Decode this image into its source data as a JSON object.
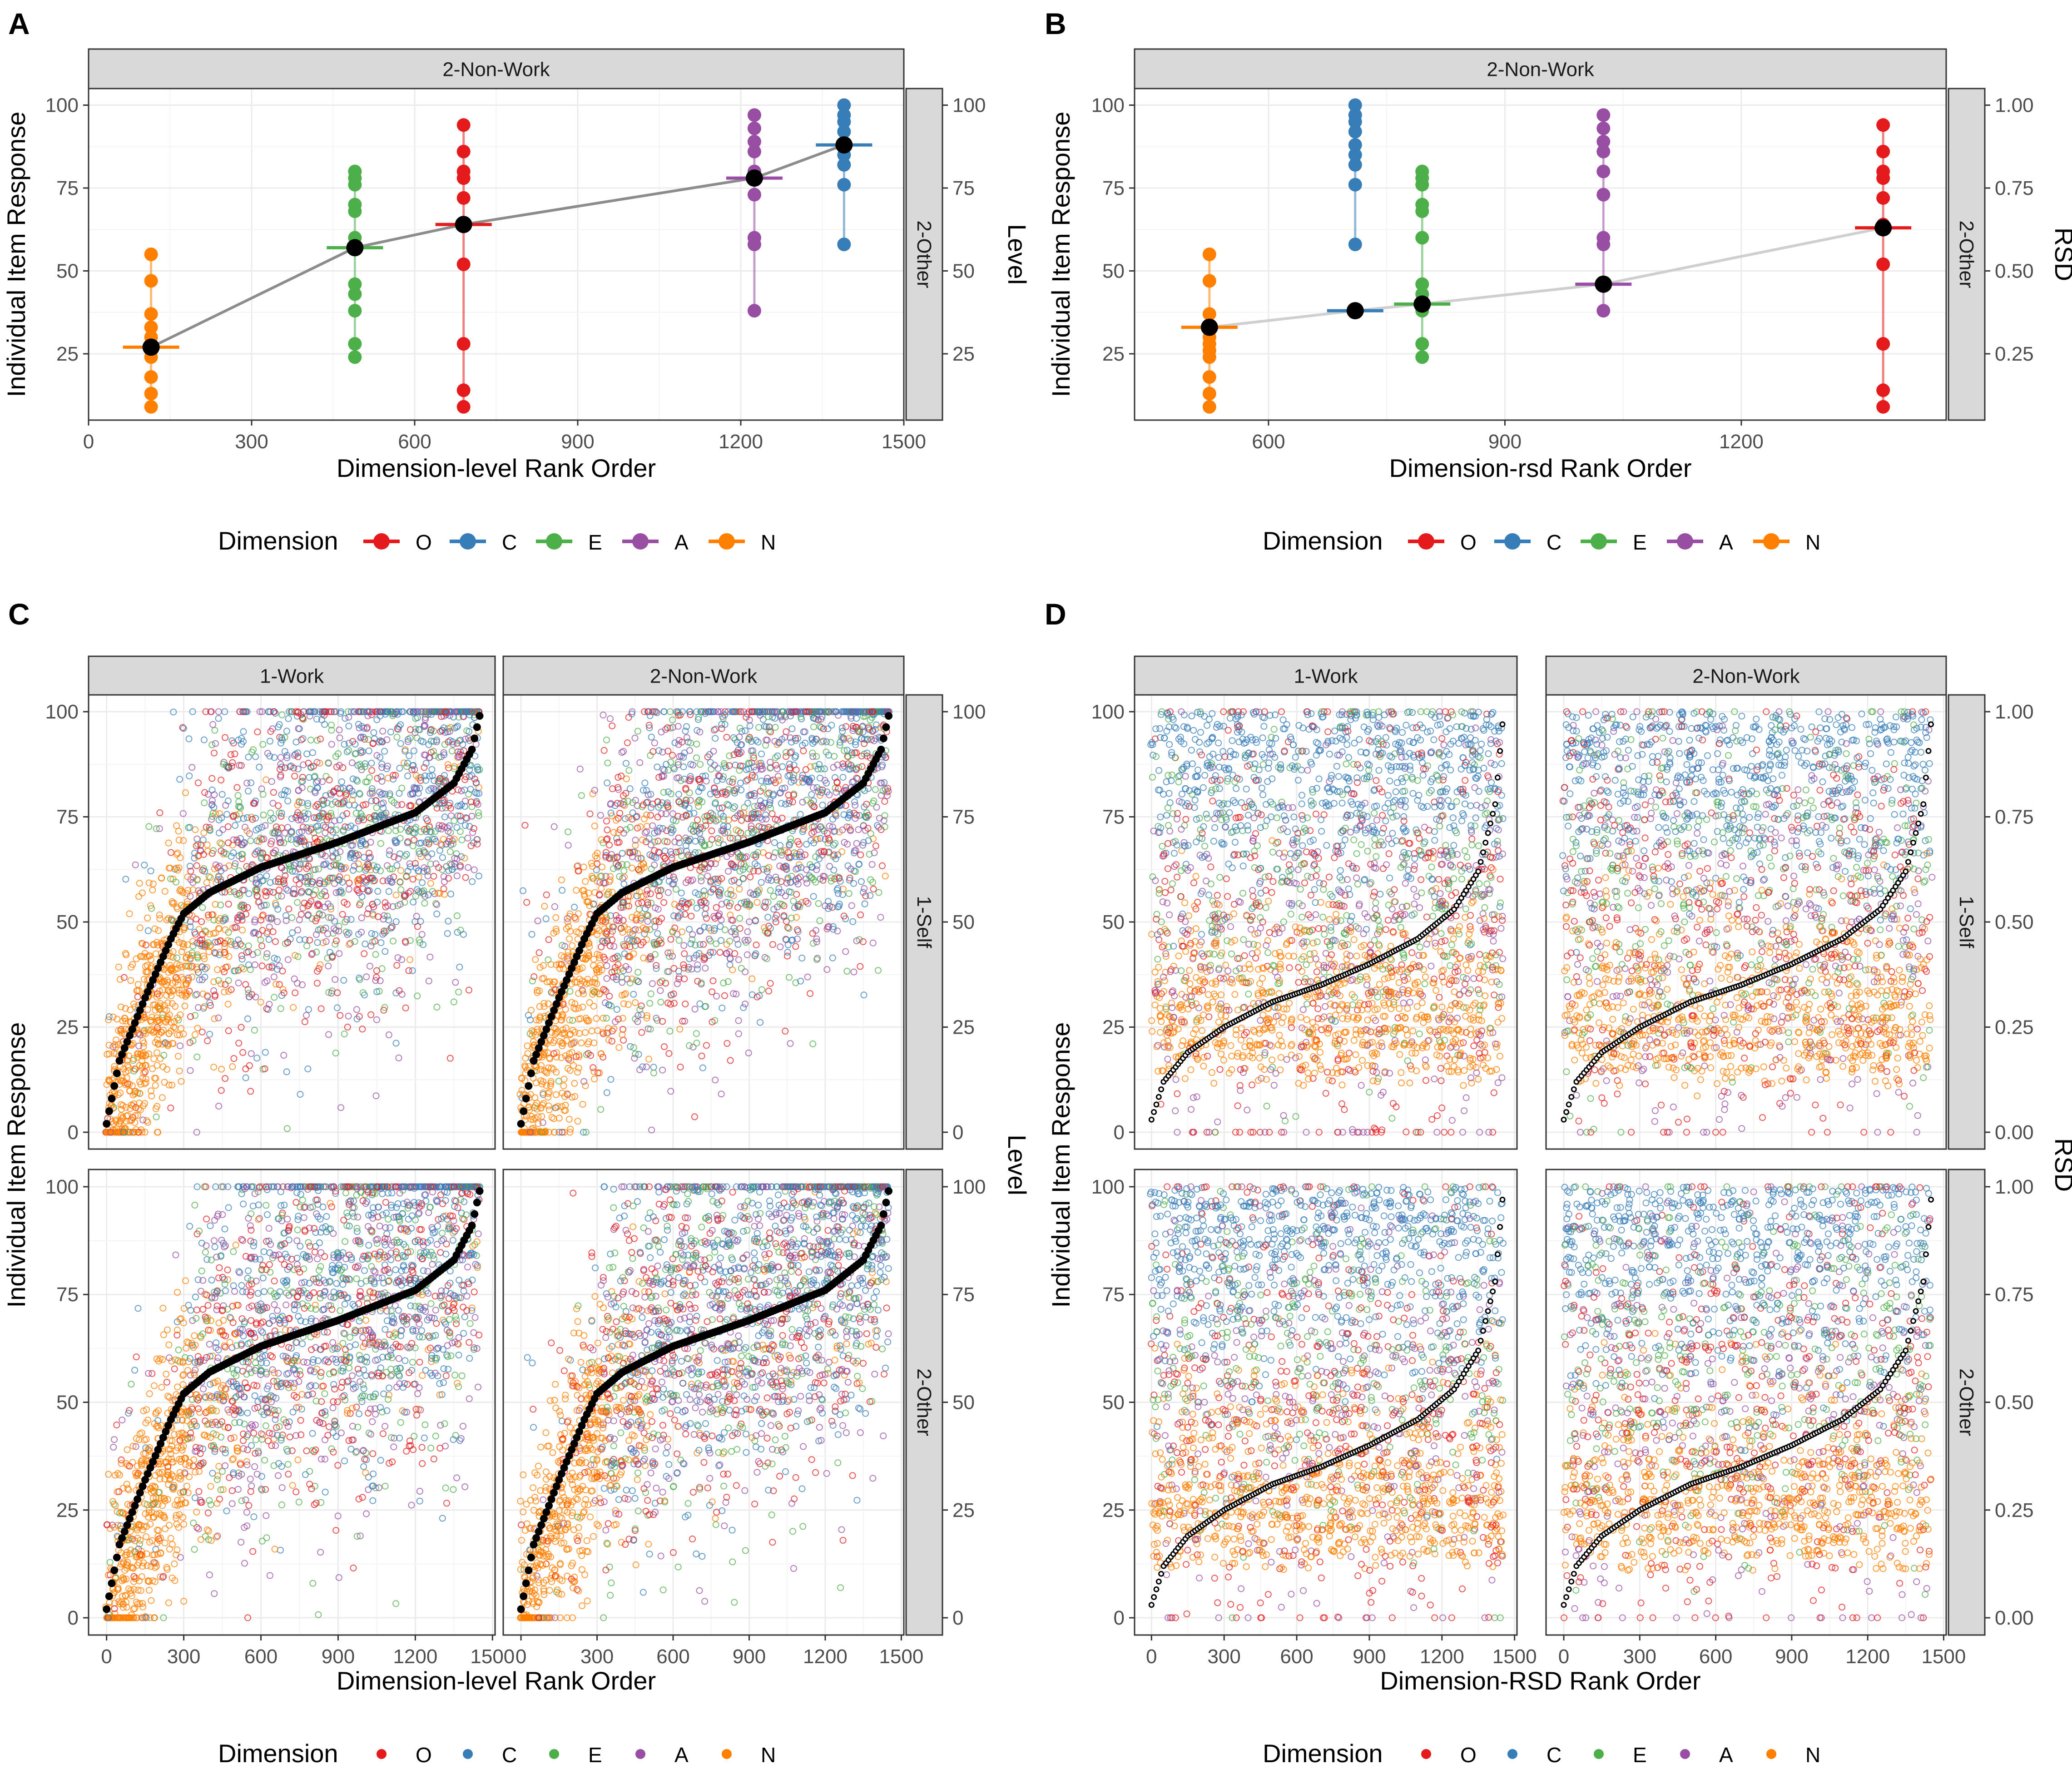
{
  "colors": {
    "O": "#E41A1C",
    "C": "#377EB8",
    "E": "#4DAF4A",
    "A": "#984EA3",
    "N": "#FF7F00",
    "strip": "#D9D9D9",
    "grid": "#EBEBEB",
    "panel_border": "#333333",
    "text": "#000000",
    "tick": "#4D4D4D"
  },
  "legend": {
    "title": "Dimension",
    "labels": [
      "O",
      "C",
      "E",
      "A",
      "N"
    ]
  },
  "chart_data": [
    {
      "id": "A",
      "letter": "A",
      "type": "scatter",
      "strips_top": [
        "2-Non-Work"
      ],
      "strips_right": [
        "2-Other"
      ],
      "xlabel": "Dimension-level Rank Order",
      "ylabel": "Individual Item Response",
      "y2label": "Level",
      "xlim": [
        0,
        1500
      ],
      "ylim": [
        5,
        105
      ],
      "xticks": [
        0,
        300,
        600,
        900,
        1200,
        1500
      ],
      "yticks": [
        25,
        50,
        75,
        100
      ],
      "ytick_labels": [
        "25",
        "50",
        "75",
        "100"
      ],
      "y2ticks": [
        25,
        50,
        75,
        100
      ],
      "y2tick_labels": [
        "25",
        "50",
        "75",
        "100"
      ],
      "groups": [
        {
          "dim": "N",
          "x": 115,
          "mean": 27,
          "items": [
            55,
            47,
            37,
            33,
            30,
            28,
            26,
            24,
            18,
            13,
            9
          ]
        },
        {
          "dim": "E",
          "x": 490,
          "mean": 57,
          "items": [
            80,
            78,
            76,
            70,
            68,
            60,
            46,
            43,
            38,
            28,
            24
          ]
        },
        {
          "dim": "O",
          "x": 690,
          "mean": 64,
          "items": [
            94,
            86,
            80,
            78,
            72,
            64,
            52,
            28,
            14,
            9
          ]
        },
        {
          "dim": "A",
          "x": 1225,
          "mean": 78,
          "items": [
            97,
            93,
            89,
            86,
            80,
            73,
            60,
            58,
            38
          ]
        },
        {
          "dim": "C",
          "x": 1390,
          "mean": 88,
          "items": [
            100,
            97,
            95,
            92,
            88,
            85,
            82,
            76,
            58
          ]
        }
      ]
    },
    {
      "id": "B",
      "letter": "B",
      "type": "scatter",
      "strips_top": [
        "2-Non-Work"
      ],
      "strips_right": [
        "2-Other"
      ],
      "xlabel": "Dimension-rsd Rank Order",
      "ylabel": "Individual Item Response",
      "y2label": "RSD",
      "xlim": [
        430,
        1460
      ],
      "ylim": [
        5,
        105
      ],
      "xticks": [
        600,
        900,
        1200
      ],
      "yticks": [
        25,
        50,
        75,
        100
      ],
      "ytick_labels": [
        "25",
        "50",
        "75",
        "100"
      ],
      "y2ticks": [
        25,
        50,
        75,
        100
      ],
      "y2tick_labels": [
        "0.25",
        "0.50",
        "0.75",
        "1.00"
      ],
      "groups": [
        {
          "dim": "N",
          "x": 525,
          "mean": 33,
          "items": [
            55,
            47,
            37,
            33,
            30,
            28,
            26,
            24,
            18,
            13,
            9
          ]
        },
        {
          "dim": "C",
          "x": 710,
          "mean": 38,
          "items": [
            100,
            97,
            95,
            92,
            88,
            85,
            82,
            76,
            58
          ]
        },
        {
          "dim": "E",
          "x": 795,
          "mean": 40,
          "items": [
            80,
            78,
            76,
            70,
            68,
            60,
            46,
            43,
            38,
            28,
            24
          ]
        },
        {
          "dim": "A",
          "x": 1025,
          "mean": 46,
          "items": [
            97,
            93,
            89,
            86,
            80,
            73,
            60,
            58,
            38
          ]
        },
        {
          "dim": "O",
          "x": 1380,
          "mean": 63,
          "items": [
            94,
            86,
            80,
            78,
            72,
            64,
            52,
            28,
            14,
            9
          ]
        }
      ]
    },
    {
      "id": "C",
      "letter": "C",
      "type": "scatter",
      "strips_top": [
        "1-Work",
        "2-Non-Work"
      ],
      "strips_right": [
        "1-Self",
        "2-Other"
      ],
      "xlabel": "Dimension-level Rank Order",
      "ylabel": "Individual Item Response",
      "y2label": "Level",
      "xlim": [
        -70,
        1510
      ],
      "ylim": [
        -4,
        104
      ],
      "xticks": [
        0,
        300,
        600,
        900,
        1200,
        1500
      ],
      "yticks": [
        0,
        25,
        50,
        75,
        100
      ],
      "ytick_labels": [
        "0",
        "25",
        "50",
        "75",
        "100"
      ],
      "y2ticks": [
        0,
        25,
        50,
        75,
        100
      ],
      "y2tick_labels": [
        "0",
        "25",
        "50",
        "75",
        "100"
      ],
      "n_units": 1450,
      "curve": {
        "rank": [
          0,
          50,
          150,
          250,
          300,
          400,
          600,
          900,
          1200,
          1350,
          1420,
          1450
        ],
        "level": [
          2,
          17,
          32,
          46,
          52,
          57,
          63,
          69,
          76,
          83,
          91,
          99
        ]
      },
      "point_density": "approximately 20000 jittered item responses per facet"
    },
    {
      "id": "D",
      "letter": "D",
      "type": "scatter",
      "strips_top": [
        "1-Work",
        "2-Non-Work"
      ],
      "strips_right": [
        "1-Self",
        "2-Other"
      ],
      "xlabel": "Dimension-RSD Rank Order",
      "ylabel": "Individual Item Response",
      "y2label": "RSD",
      "xlim": [
        -70,
        1510
      ],
      "ylim": [
        -4,
        104
      ],
      "xticks": [
        0,
        300,
        600,
        900,
        1200,
        1500
      ],
      "yticks": [
        0,
        25,
        50,
        75,
        100
      ],
      "ytick_labels": [
        "0",
        "25",
        "50",
        "75",
        "100"
      ],
      "y2ticks": [
        0,
        25,
        50,
        75,
        100
      ],
      "y2tick_labels": [
        "0.00",
        "0.25",
        "0.50",
        "0.75",
        "1.00"
      ],
      "n_units": 1450,
      "curve": {
        "rank": [
          0,
          50,
          150,
          300,
          500,
          700,
          900,
          1100,
          1250,
          1350,
          1420,
          1450
        ],
        "rsd": [
          0.03,
          0.12,
          0.19,
          0.25,
          0.31,
          0.35,
          0.4,
          0.46,
          0.53,
          0.62,
          0.78,
          0.97
        ]
      },
      "point_density": "approximately 20000 jittered item responses per facet"
    }
  ]
}
